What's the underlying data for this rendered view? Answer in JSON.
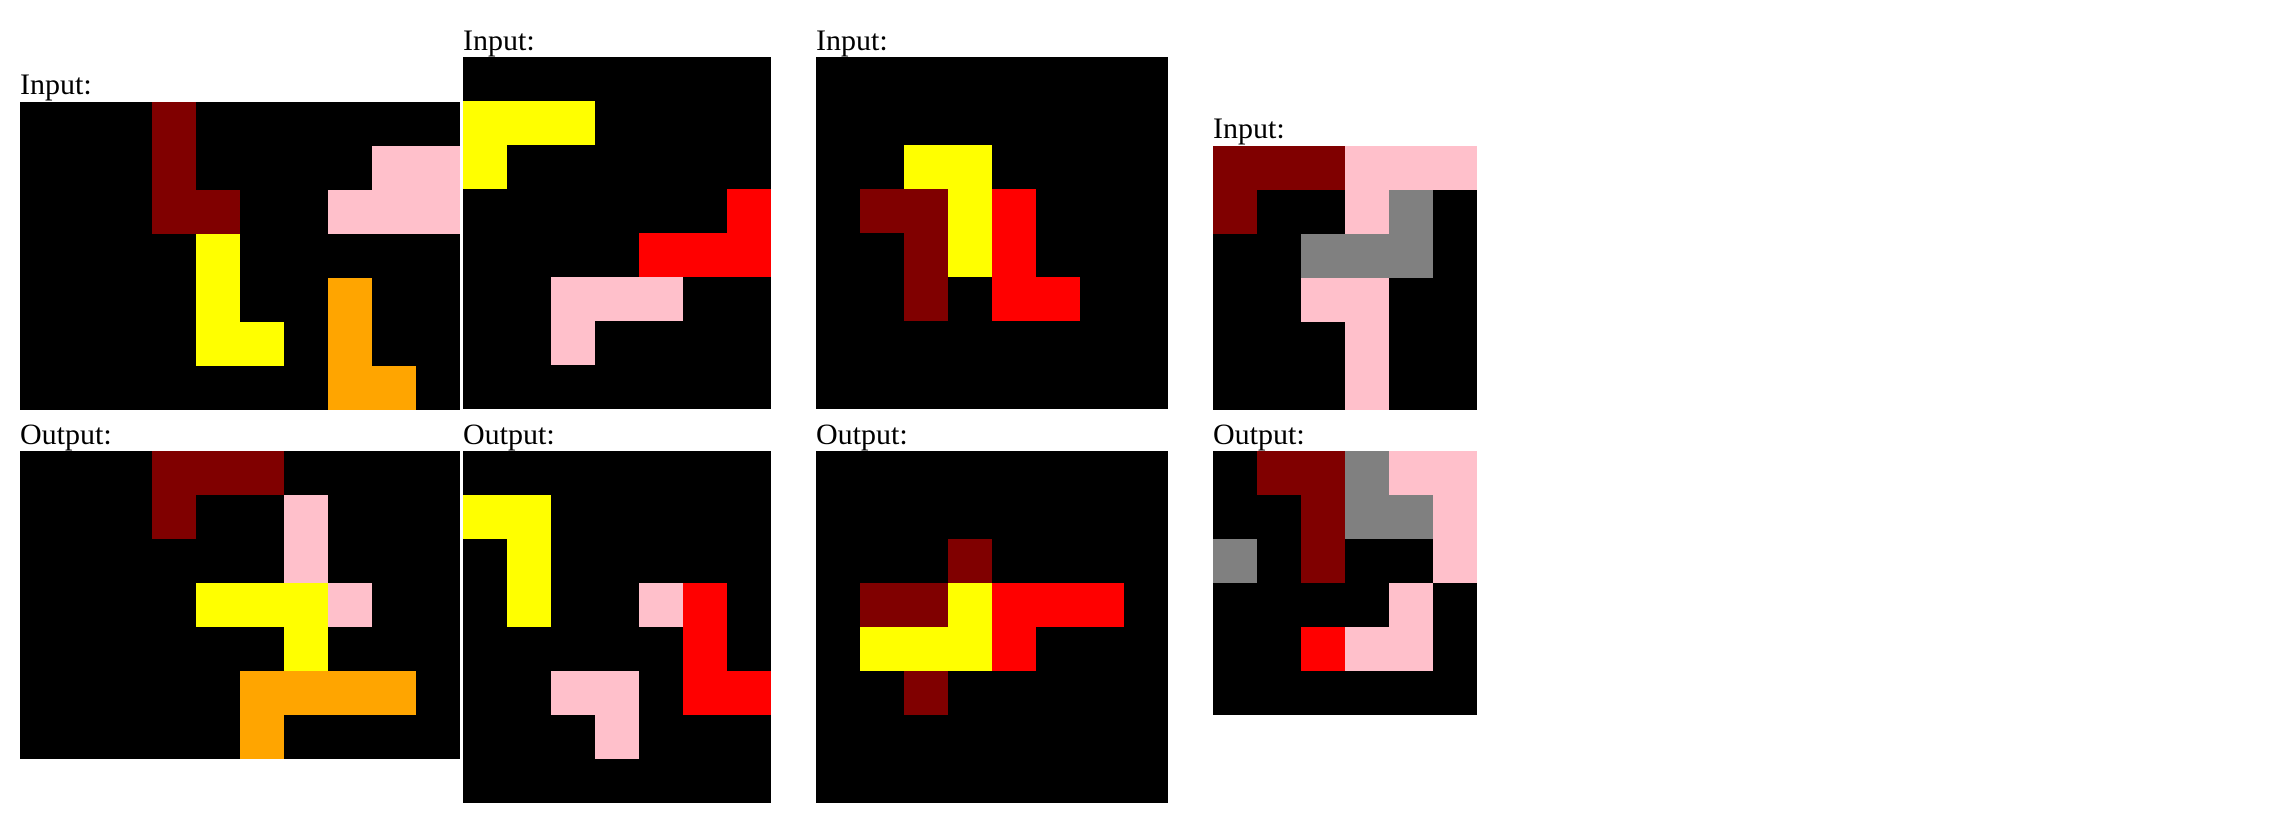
{
  "colors": {
    "0": "#000000",
    "2": "#ff0000",
    "4": "#ffff00",
    "5": "#808080",
    "6": "#ffc0cb",
    "7": "#ffa500",
    "9": "#800000"
  },
  "pairs": [
    {
      "input_label": "Input:",
      "output_label": "Output:",
      "input": [
        "0009000000",
        "0009000066",
        "0009900666",
        "0000400000",
        "0000400700",
        "0000440700",
        "0000000770"
      ],
      "output": [
        "0009990000",
        "0009006000",
        "0000006000",
        "0000444600",
        "0000004000",
        "0000077770",
        "0000070000"
      ]
    },
    {
      "input_label": "Input:",
      "output_label": "Output:",
      "input": [
        "0000000",
        "4440000",
        "4000000",
        "0000002",
        "0000222",
        "0066600",
        "0060000",
        "0000000"
      ],
      "output": [
        "0000000",
        "4400000",
        "0400000",
        "0400620",
        "0000020",
        "0066022",
        "0006000",
        "0000000"
      ]
    },
    {
      "input_label": "Input:",
      "output_label": "Output:",
      "input": [
        "00000000",
        "00000000",
        "00440000",
        "09942000",
        "00942000",
        "00902200",
        "00000000",
        "00000000"
      ],
      "output": [
        "00000000",
        "00000000",
        "00090000",
        "09942220",
        "04442000",
        "00900000",
        "00000000",
        "00000000"
      ]
    },
    {
      "input_label": "Input:",
      "output_label": null,
      "input": [
        "999666",
        "900650",
        "005550",
        "006600",
        "000600",
        "000600"
      ],
      "output": null
    },
    {
      "input_label": null,
      "output_label": "Output:",
      "input": null,
      "output": [
        "099566",
        "009556",
        "509006",
        "000060",
        "002660",
        "000000"
      ]
    }
  ]
}
